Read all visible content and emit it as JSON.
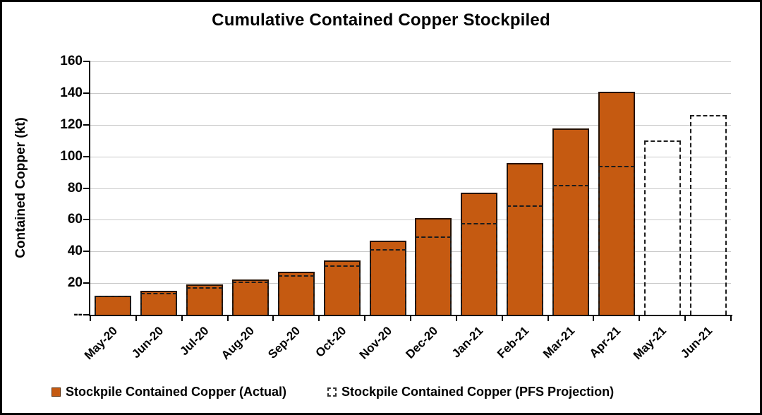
{
  "title": "Cumulative Contained Copper Stockpiled",
  "y_axis": {
    "title": "Contained Copper (kt)"
  },
  "legend": {
    "items": [
      {
        "label": "Stockpile Contained Copper (Actual)",
        "marker": "filled-square-icon",
        "color": "#C55A11"
      },
      {
        "label": "Stockpile Contained Copper (PFS Projection)",
        "marker": "dashed-square-icon",
        "color": "#FFFFFF"
      }
    ],
    "position": "bottom"
  },
  "colors": {
    "bar_fill": "#C55A11",
    "bar_border": "#241103",
    "projection_dash": "#1C1C1C",
    "gridline": "#C9C9C9",
    "axis": "#000000",
    "background": "#FFFFFF"
  },
  "chart_data": {
    "type": "bar",
    "title": "Cumulative Contained Copper Stockpiled",
    "xlabel": "",
    "ylabel": "Contained Copper (kt)",
    "ylim": [
      0,
      160
    ],
    "ytick_interval": 20,
    "ytick_labels": [
      "--",
      "20",
      "40",
      "60",
      "80",
      "100",
      "120",
      "140",
      "160"
    ],
    "grid": true,
    "legend_position": "bottom",
    "categories": [
      "May-20",
      "Jun-20",
      "Jul-20",
      "Aug-20",
      "Sep-20",
      "Oct-20",
      "Nov-20",
      "Dec-20",
      "Jan-21",
      "Feb-21",
      "Mar-21",
      "Apr-21",
      "May-21",
      "Jun-21"
    ],
    "series": [
      {
        "name": "Stockpile Contained Copper (Actual)",
        "style": "solid-fill",
        "values": [
          12,
          15,
          19,
          22.5,
          27,
          34.5,
          47,
          61,
          77,
          96,
          117.5,
          141,
          null,
          null
        ]
      },
      {
        "name": "Stockpile Contained Copper (PFS Projection)",
        "style": "dashed-outline",
        "values": [
          12,
          14,
          17.5,
          21,
          25,
          31,
          41.5,
          49.5,
          58,
          69,
          82,
          94,
          110,
          126
        ]
      }
    ]
  }
}
